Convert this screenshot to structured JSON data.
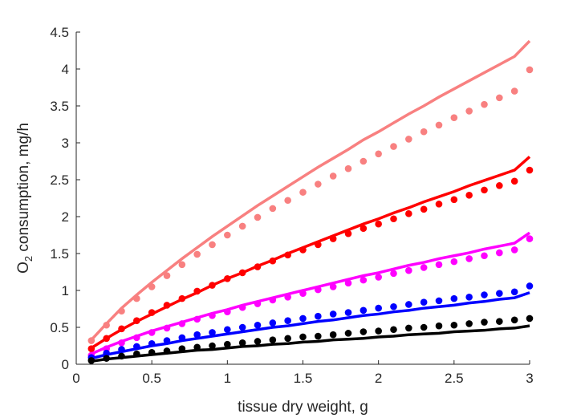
{
  "chart_data": {
    "type": "scatter",
    "title": "",
    "xlabel": "tissue dry weight, g",
    "ylabel": {
      "prefix": "O",
      "subscript": "2",
      "suffix": " consumption, mg/h"
    },
    "xlim": [
      0,
      3
    ],
    "ylim": [
      0,
      4.5
    ],
    "xticks": [
      0,
      0.5,
      1,
      1.5,
      2,
      2.5,
      3
    ],
    "xtick_labels": [
      "0",
      "0.5",
      "1",
      "1.5",
      "2",
      "2.5",
      "3"
    ],
    "yticks": [
      0,
      0.5,
      1,
      1.5,
      2,
      2.5,
      3,
      3.5,
      4,
      4.5
    ],
    "ytick_labels": [
      "0",
      "0.5",
      "1",
      "1.5",
      "2",
      "2.5",
      "3",
      "3.5",
      "4",
      "4.5"
    ],
    "grid": false,
    "legend": "none",
    "x": [
      0.1,
      0.2,
      0.3,
      0.4,
      0.5,
      0.6,
      0.7,
      0.8,
      0.9,
      1.0,
      1.1,
      1.2,
      1.3,
      1.4,
      1.5,
      1.6,
      1.7,
      1.8,
      1.9,
      2.0,
      2.1,
      2.2,
      2.3,
      2.4,
      2.5,
      2.6,
      2.7,
      2.8,
      2.9,
      3.0
    ],
    "series": [
      {
        "color": "#f88080",
        "points": [
          0.32,
          0.53,
          0.72,
          0.89,
          1.05,
          1.2,
          1.35,
          1.49,
          1.62,
          1.75,
          1.87,
          1.99,
          2.11,
          2.22,
          2.33,
          2.44,
          2.55,
          2.65,
          2.75,
          2.85,
          2.95,
          3.05,
          3.15,
          3.24,
          3.34,
          3.43,
          3.52,
          3.61,
          3.7,
          3.99
        ],
        "line": [
          0.33,
          0.55,
          0.76,
          0.94,
          1.11,
          1.27,
          1.43,
          1.58,
          1.73,
          1.87,
          2.01,
          2.15,
          2.28,
          2.41,
          2.54,
          2.67,
          2.79,
          2.91,
          3.04,
          3.15,
          3.27,
          3.39,
          3.5,
          3.62,
          3.73,
          3.84,
          3.95,
          4.06,
          4.17,
          4.38
        ]
      },
      {
        "color": "#ff0000",
        "points": [
          0.21,
          0.35,
          0.48,
          0.59,
          0.7,
          0.8,
          0.89,
          0.99,
          1.07,
          1.16,
          1.24,
          1.32,
          1.4,
          1.48,
          1.55,
          1.62,
          1.7,
          1.77,
          1.84,
          1.9,
          1.97,
          2.04,
          2.1,
          2.17,
          2.23,
          2.29,
          2.36,
          2.42,
          2.48,
          2.63
        ],
        "line": [
          0.22,
          0.35,
          0.47,
          0.58,
          0.68,
          0.78,
          0.88,
          0.97,
          1.07,
          1.16,
          1.24,
          1.33,
          1.41,
          1.5,
          1.58,
          1.66,
          1.74,
          1.82,
          1.9,
          1.97,
          2.05,
          2.12,
          2.2,
          2.27,
          2.34,
          2.42,
          2.49,
          2.56,
          2.63,
          2.81
        ]
      },
      {
        "color": "#ff00ff",
        "points": [
          0.12,
          0.21,
          0.29,
          0.36,
          0.43,
          0.49,
          0.55,
          0.61,
          0.66,
          0.71,
          0.77,
          0.82,
          0.87,
          0.91,
          0.96,
          1.01,
          1.05,
          1.1,
          1.14,
          1.18,
          1.23,
          1.27,
          1.31,
          1.35,
          1.39,
          1.43,
          1.47,
          1.51,
          1.55,
          1.7
        ],
        "line": [
          0.14,
          0.23,
          0.31,
          0.38,
          0.45,
          0.51,
          0.57,
          0.63,
          0.69,
          0.74,
          0.8,
          0.85,
          0.9,
          0.95,
          1.0,
          1.05,
          1.1,
          1.15,
          1.2,
          1.24,
          1.29,
          1.34,
          1.38,
          1.43,
          1.47,
          1.51,
          1.56,
          1.6,
          1.64,
          1.78
        ]
      },
      {
        "color": "#0000ff",
        "points": [
          0.09,
          0.15,
          0.2,
          0.24,
          0.28,
          0.32,
          0.36,
          0.4,
          0.43,
          0.47,
          0.5,
          0.53,
          0.56,
          0.59,
          0.62,
          0.65,
          0.68,
          0.7,
          0.73,
          0.76,
          0.78,
          0.81,
          0.84,
          0.86,
          0.89,
          0.91,
          0.94,
          0.96,
          0.98,
          1.06
        ],
        "line": [
          0.08,
          0.13,
          0.17,
          0.21,
          0.25,
          0.28,
          0.32,
          0.35,
          0.38,
          0.41,
          0.44,
          0.47,
          0.5,
          0.52,
          0.55,
          0.58,
          0.6,
          0.63,
          0.66,
          0.68,
          0.71,
          0.73,
          0.76,
          0.78,
          0.8,
          0.83,
          0.85,
          0.88,
          0.9,
          0.97
        ]
      },
      {
        "color": "#000000",
        "points": [
          0.05,
          0.08,
          0.11,
          0.14,
          0.16,
          0.18,
          0.21,
          0.23,
          0.25,
          0.27,
          0.29,
          0.31,
          0.33,
          0.35,
          0.37,
          0.38,
          0.4,
          0.42,
          0.44,
          0.45,
          0.47,
          0.49,
          0.5,
          0.52,
          0.53,
          0.55,
          0.57,
          0.58,
          0.6,
          0.62
        ],
        "line": [
          0.04,
          0.07,
          0.09,
          0.11,
          0.13,
          0.15,
          0.17,
          0.19,
          0.2,
          0.22,
          0.24,
          0.25,
          0.27,
          0.28,
          0.3,
          0.31,
          0.33,
          0.34,
          0.35,
          0.37,
          0.38,
          0.4,
          0.41,
          0.42,
          0.44,
          0.45,
          0.46,
          0.48,
          0.49,
          0.52
        ]
      }
    ]
  }
}
